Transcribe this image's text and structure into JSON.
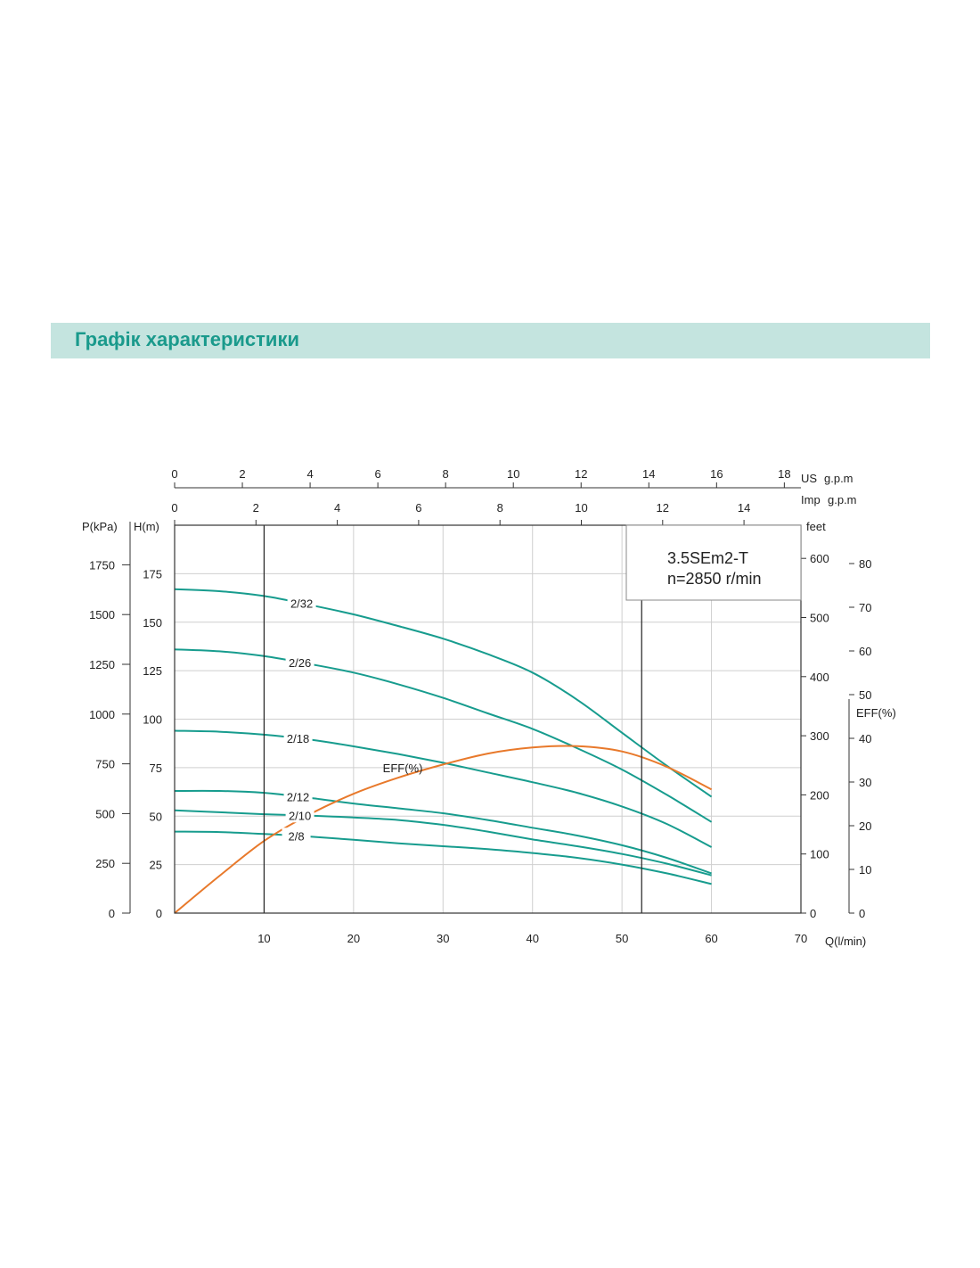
{
  "page": {
    "title": "Графік характеристики"
  },
  "chart_data": {
    "type": "line",
    "model_label": "3.5SEm2-T",
    "speed_label": "n=2850 r/min",
    "x": {
      "label": "Q(l/min)",
      "range": [
        0,
        70
      ],
      "ticks": [
        10,
        20,
        30,
        40,
        50,
        60,
        70
      ],
      "vertical_markers": [
        10,
        52.2
      ]
    },
    "x_us_gpm": {
      "label_unit": "US",
      "label": "g.p.m",
      "range": [
        0,
        18.49
      ],
      "ticks": [
        0,
        2,
        4,
        6,
        8,
        10,
        12,
        14,
        16,
        18
      ]
    },
    "x_imp_gpm": {
      "label_unit": "Imp",
      "label": "g.p.m",
      "range": [
        0,
        15.4
      ],
      "ticks": [
        0,
        2,
        4,
        6,
        8,
        10,
        12,
        14
      ]
    },
    "y_head": {
      "label": "H(m)",
      "range": [
        0,
        200
      ],
      "ticks": [
        0,
        25,
        50,
        75,
        100,
        125,
        150,
        175
      ]
    },
    "y_pressure": {
      "label": "P(kPa)",
      "ticks": [
        0,
        250,
        500,
        750,
        1000,
        1250,
        1500,
        1750
      ]
    },
    "y_feet": {
      "label": "feet",
      "ticks": [
        0,
        100,
        200,
        300,
        400,
        500,
        600
      ]
    },
    "y_eff": {
      "label": "EFF(%)",
      "range": [
        0,
        80
      ],
      "ticks": [
        0,
        10,
        20,
        30,
        40,
        50,
        60,
        70,
        80
      ]
    },
    "series": [
      {
        "name": "2/32",
        "label_at": 14.2,
        "color": "#179c8e",
        "x": [
          0,
          5,
          10,
          15,
          20,
          25,
          30,
          35,
          40,
          45,
          50,
          55,
          60
        ],
        "y": [
          167,
          166,
          163.5,
          159,
          154,
          148,
          141.5,
          133.5,
          124,
          110,
          93,
          76,
          60
        ]
      },
      {
        "name": "2/26",
        "label_at": 14,
        "color": "#179c8e",
        "x": [
          0,
          5,
          10,
          15,
          20,
          25,
          30,
          35,
          40,
          45,
          50,
          55,
          60
        ],
        "y": [
          136,
          135,
          132.5,
          128.5,
          124,
          118,
          111,
          103,
          95,
          85,
          74,
          61,
          47
        ]
      },
      {
        "name": "2/18",
        "label_at": 13.8,
        "color": "#179c8e",
        "x": [
          0,
          5,
          10,
          15,
          20,
          25,
          30,
          35,
          40,
          45,
          50,
          55,
          60
        ],
        "y": [
          94,
          93.5,
          92,
          89.5,
          86,
          82,
          77.5,
          72.5,
          67.5,
          62,
          55,
          46,
          34
        ]
      },
      {
        "name": "2/12",
        "label_at": 13.8,
        "color": "#179c8e",
        "x": [
          0,
          5,
          10,
          15,
          20,
          25,
          30,
          35,
          40,
          45,
          50,
          55,
          60
        ],
        "y": [
          63,
          63,
          62,
          59.5,
          56.5,
          54,
          51.5,
          48,
          44,
          40,
          35,
          28.5,
          20.5
        ]
      },
      {
        "name": "2/10",
        "label_at": 14,
        "color": "#179c8e",
        "x": [
          0,
          5,
          10,
          15,
          20,
          25,
          30,
          35,
          40,
          45,
          50,
          55,
          60
        ],
        "y": [
          53,
          52,
          51,
          50.3,
          49.3,
          48,
          45.5,
          42,
          38,
          34.5,
          30.5,
          25.5,
          19.5
        ]
      },
      {
        "name": "2/8",
        "label_at": 13.6,
        "color": "#179c8e",
        "x": [
          0,
          5,
          10,
          15,
          20,
          25,
          30,
          35,
          40,
          45,
          50,
          55,
          60
        ],
        "y": [
          42,
          41.8,
          40.8,
          39.5,
          37.8,
          36,
          34.5,
          33,
          31,
          28.5,
          25,
          20.5,
          15
        ]
      },
      {
        "name": "EFF(%)",
        "axis": "eff",
        "label_at": 25,
        "color": "#e8792b",
        "x": [
          0,
          5,
          10,
          15,
          20,
          25,
          30,
          35,
          40,
          45,
          50,
          55,
          60
        ],
        "y": [
          0,
          8.5,
          16.5,
          22.5,
          27.3,
          31,
          34,
          36.5,
          37.9,
          38.2,
          37,
          33.5,
          28.3
        ]
      }
    ]
  }
}
